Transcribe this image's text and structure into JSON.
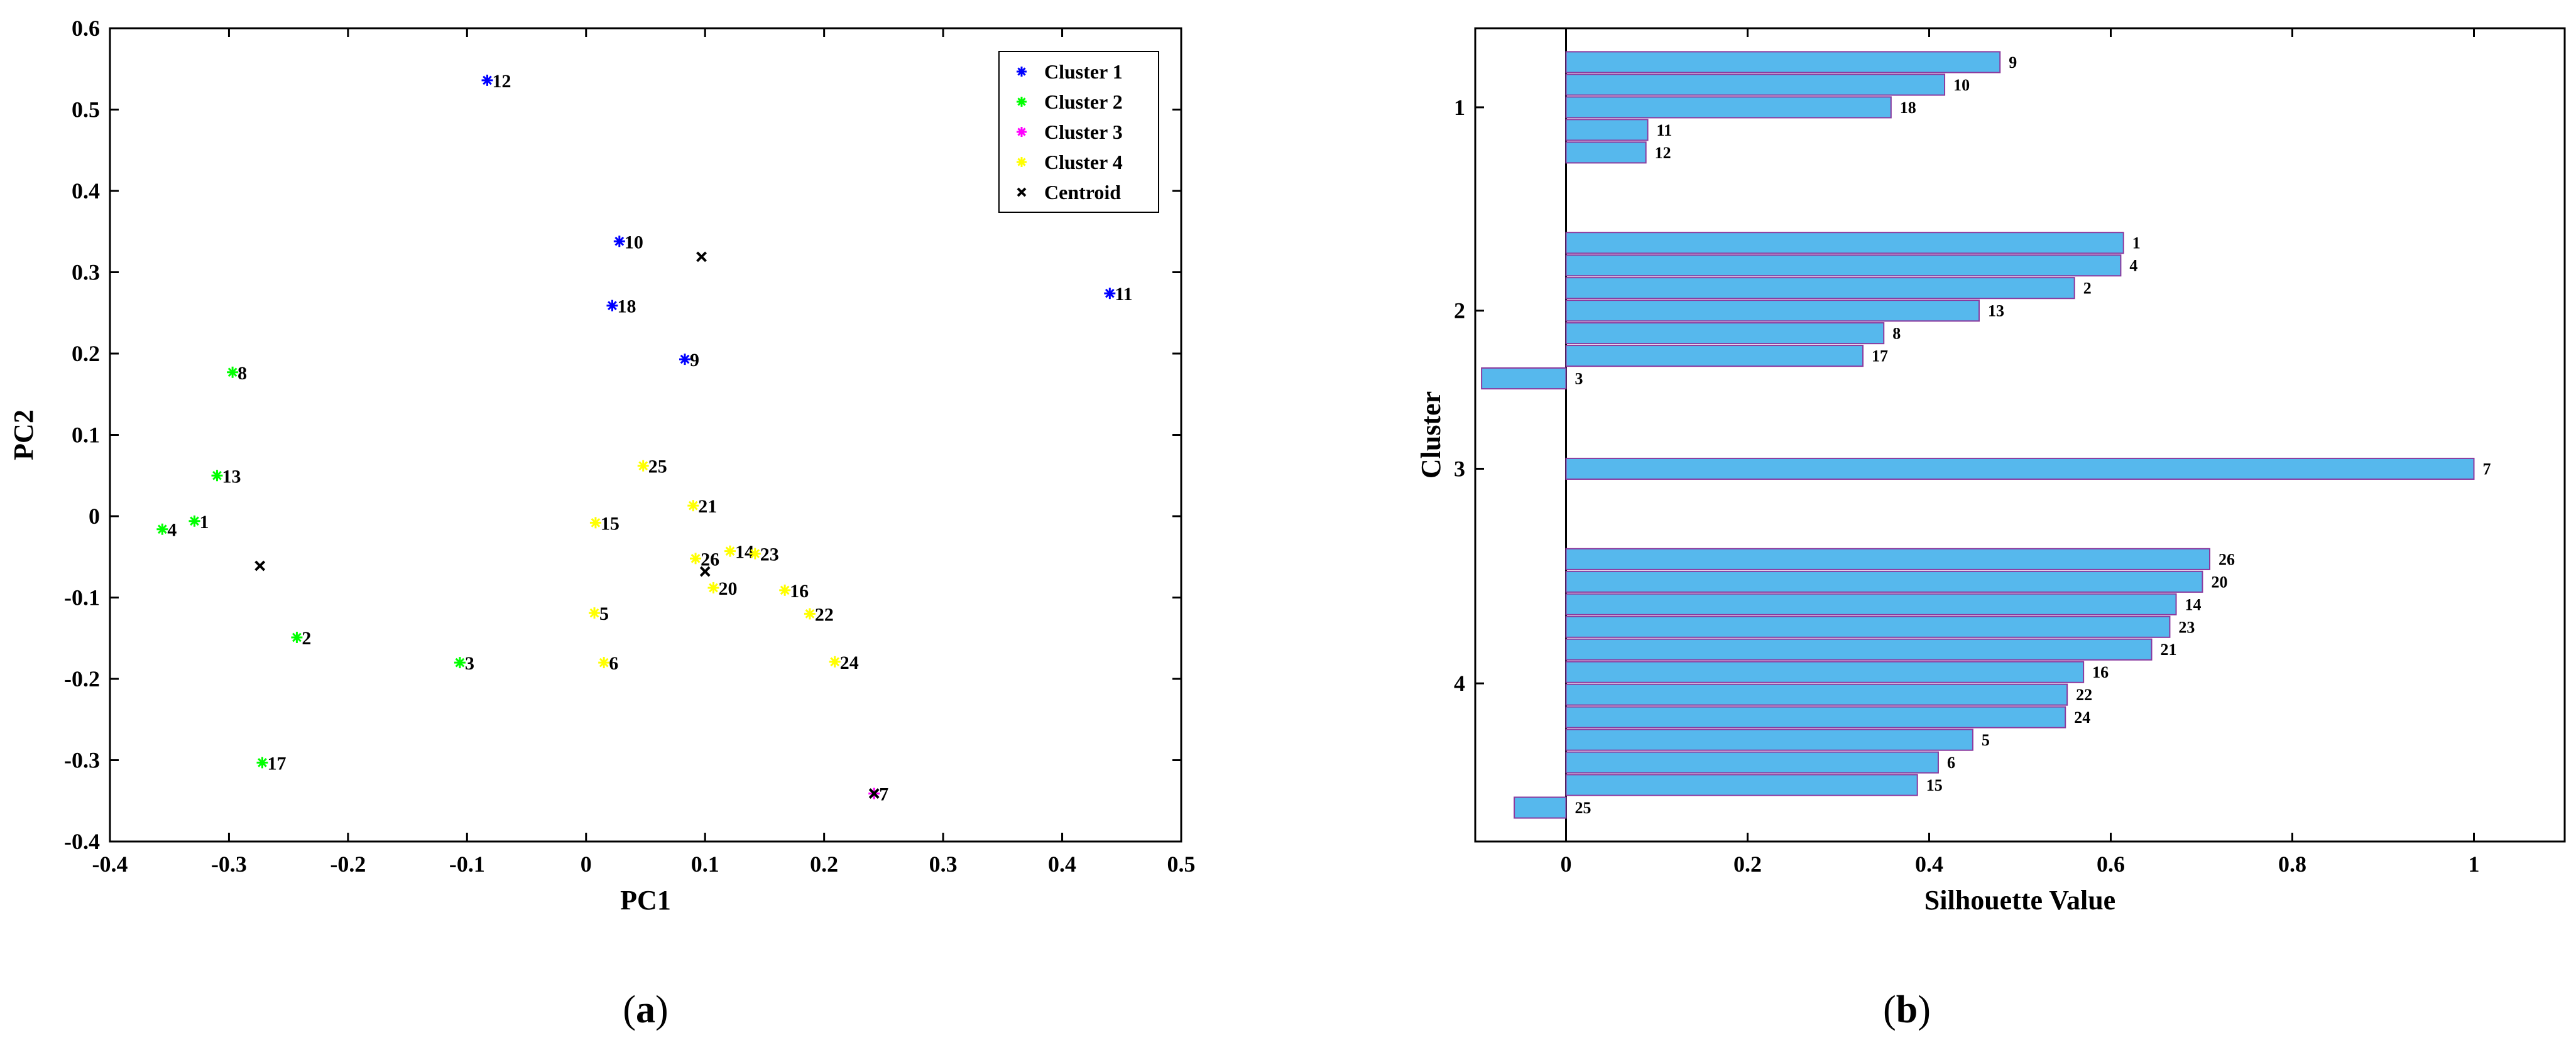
{
  "panels": [
    {
      "caption_open": "(",
      "caption_letter": "a",
      "caption_close": ")",
      "legend": [
        {
          "label": "Cluster 1",
          "color": "#0000ff",
          "marker": "asterisk"
        },
        {
          "label": "Cluster 2",
          "color": "#00ff00",
          "marker": "asterisk"
        },
        {
          "label": "Cluster 3",
          "color": "#ff00ff",
          "marker": "asterisk"
        },
        {
          "label": "Cluster 4",
          "color": "#ffff00",
          "marker": "asterisk"
        },
        {
          "label": "Centroid",
          "color": "#000000",
          "marker": "x"
        }
      ]
    },
    {
      "caption_open": "(",
      "caption_letter": "b",
      "caption_close": ")"
    }
  ],
  "chart_data": [
    {
      "type": "scatter",
      "title": "",
      "xlabel": "PC1",
      "ylabel": "PC2",
      "xlim": [
        -0.4,
        0.5
      ],
      "ylim": [
        -0.4,
        0.6
      ],
      "xticks": [
        "-0.4",
        "-0.3",
        "-0.2",
        "-0.1",
        "0",
        "0.1",
        "0.2",
        "0.3",
        "0.4",
        "0.5"
      ],
      "yticks": [
        "-0.4",
        "-0.3",
        "-0.2",
        "-0.1",
        "0",
        "0.1",
        "0.2",
        "0.3",
        "0.4",
        "0.5",
        "0.6"
      ],
      "legend_position": "top-right",
      "series": [
        {
          "name": "Cluster 1",
          "color": "#0000ff",
          "points": [
            {
              "label": "12",
              "x": -0.083,
              "y": 0.536
            },
            {
              "label": "10",
              "x": 0.028,
              "y": 0.338
            },
            {
              "label": "18",
              "x": 0.022,
              "y": 0.259
            },
            {
              "label": "9",
              "x": 0.083,
              "y": 0.193
            },
            {
              "label": "11",
              "x": 0.44,
              "y": 0.274
            }
          ]
        },
        {
          "name": "Cluster 2",
          "color": "#00ff00",
          "points": [
            {
              "label": "8",
              "x": -0.297,
              "y": 0.177
            },
            {
              "label": "13",
              "x": -0.31,
              "y": 0.05
            },
            {
              "label": "4",
              "x": -0.356,
              "y": -0.016
            },
            {
              "label": "1",
              "x": -0.329,
              "y": -0.006
            },
            {
              "label": "2",
              "x": -0.243,
              "y": -0.149
            },
            {
              "label": "3",
              "x": -0.106,
              "y": -0.18
            },
            {
              "label": "17",
              "x": -0.272,
              "y": -0.303
            }
          ]
        },
        {
          "name": "Cluster 3",
          "color": "#ff00ff",
          "points": [
            {
              "label": "7",
              "x": 0.242,
              "y": -0.341
            }
          ]
        },
        {
          "name": "Cluster 4",
          "color": "#ffff00",
          "points": [
            {
              "label": "25",
              "x": 0.048,
              "y": 0.062
            },
            {
              "label": "21",
              "x": 0.09,
              "y": 0.013
            },
            {
              "label": "15",
              "x": 0.008,
              "y": -0.008
            },
            {
              "label": "14",
              "x": 0.121,
              "y": -0.043
            },
            {
              "label": "23",
              "x": 0.142,
              "y": -0.046
            },
            {
              "label": "26",
              "x": 0.092,
              "y": -0.052
            },
            {
              "label": "20",
              "x": 0.107,
              "y": -0.088
            },
            {
              "label": "16",
              "x": 0.167,
              "y": -0.091
            },
            {
              "label": "22",
              "x": 0.188,
              "y": -0.12
            },
            {
              "label": "5",
              "x": 0.007,
              "y": -0.119
            },
            {
              "label": "6",
              "x": 0.015,
              "y": -0.18
            },
            {
              "label": "24",
              "x": 0.209,
              "y": -0.179
            }
          ]
        },
        {
          "name": "Centroid",
          "color": "#000000",
          "points": [
            {
              "label": "",
              "x": 0.097,
              "y": 0.319
            },
            {
              "label": "",
              "x": -0.274,
              "y": -0.061
            },
            {
              "label": "",
              "x": 0.1,
              "y": -0.068
            },
            {
              "label": "",
              "x": 0.242,
              "y": -0.341
            }
          ]
        }
      ]
    },
    {
      "type": "bar",
      "orientation": "horizontal",
      "title": "",
      "xlabel": "Silhouette Value",
      "ylabel": "Cluster",
      "xlim": [
        -0.1,
        1.1
      ],
      "xticks": [
        "0",
        "0.2",
        "0.4",
        "0.6",
        "0.8",
        "1"
      ],
      "bar_color": "#56b8ed",
      "bar_edge_color": "#8b3a9e",
      "clusters": [
        {
          "tick": "1",
          "bars": [
            {
              "label": "9",
              "value": 0.478
            },
            {
              "label": "10",
              "value": 0.417
            },
            {
              "label": "18",
              "value": 0.358
            },
            {
              "label": "11",
              "value": 0.09
            },
            {
              "label": "12",
              "value": 0.088
            }
          ]
        },
        {
          "tick": "2",
          "bars": [
            {
              "label": "1",
              "value": 0.614
            },
            {
              "label": "4",
              "value": 0.611
            },
            {
              "label": "2",
              "value": 0.56
            },
            {
              "label": "13",
              "value": 0.455
            },
            {
              "label": "8",
              "value": 0.35
            },
            {
              "label": "17",
              "value": 0.327
            },
            {
              "label": "3",
              "value": -0.093
            }
          ]
        },
        {
          "tick": "3",
          "bars": [
            {
              "label": "7",
              "value": 1.0
            }
          ]
        },
        {
          "tick": "4",
          "bars": [
            {
              "label": "26",
              "value": 0.709
            },
            {
              "label": "20",
              "value": 0.701
            },
            {
              "label": "14",
              "value": 0.672
            },
            {
              "label": "23",
              "value": 0.665
            },
            {
              "label": "21",
              "value": 0.645
            },
            {
              "label": "16",
              "value": 0.57
            },
            {
              "label": "22",
              "value": 0.552
            },
            {
              "label": "24",
              "value": 0.55
            },
            {
              "label": "5",
              "value": 0.448
            },
            {
              "label": "6",
              "value": 0.41
            },
            {
              "label": "15",
              "value": 0.387
            },
            {
              "label": "25",
              "value": -0.057
            }
          ]
        }
      ]
    }
  ]
}
